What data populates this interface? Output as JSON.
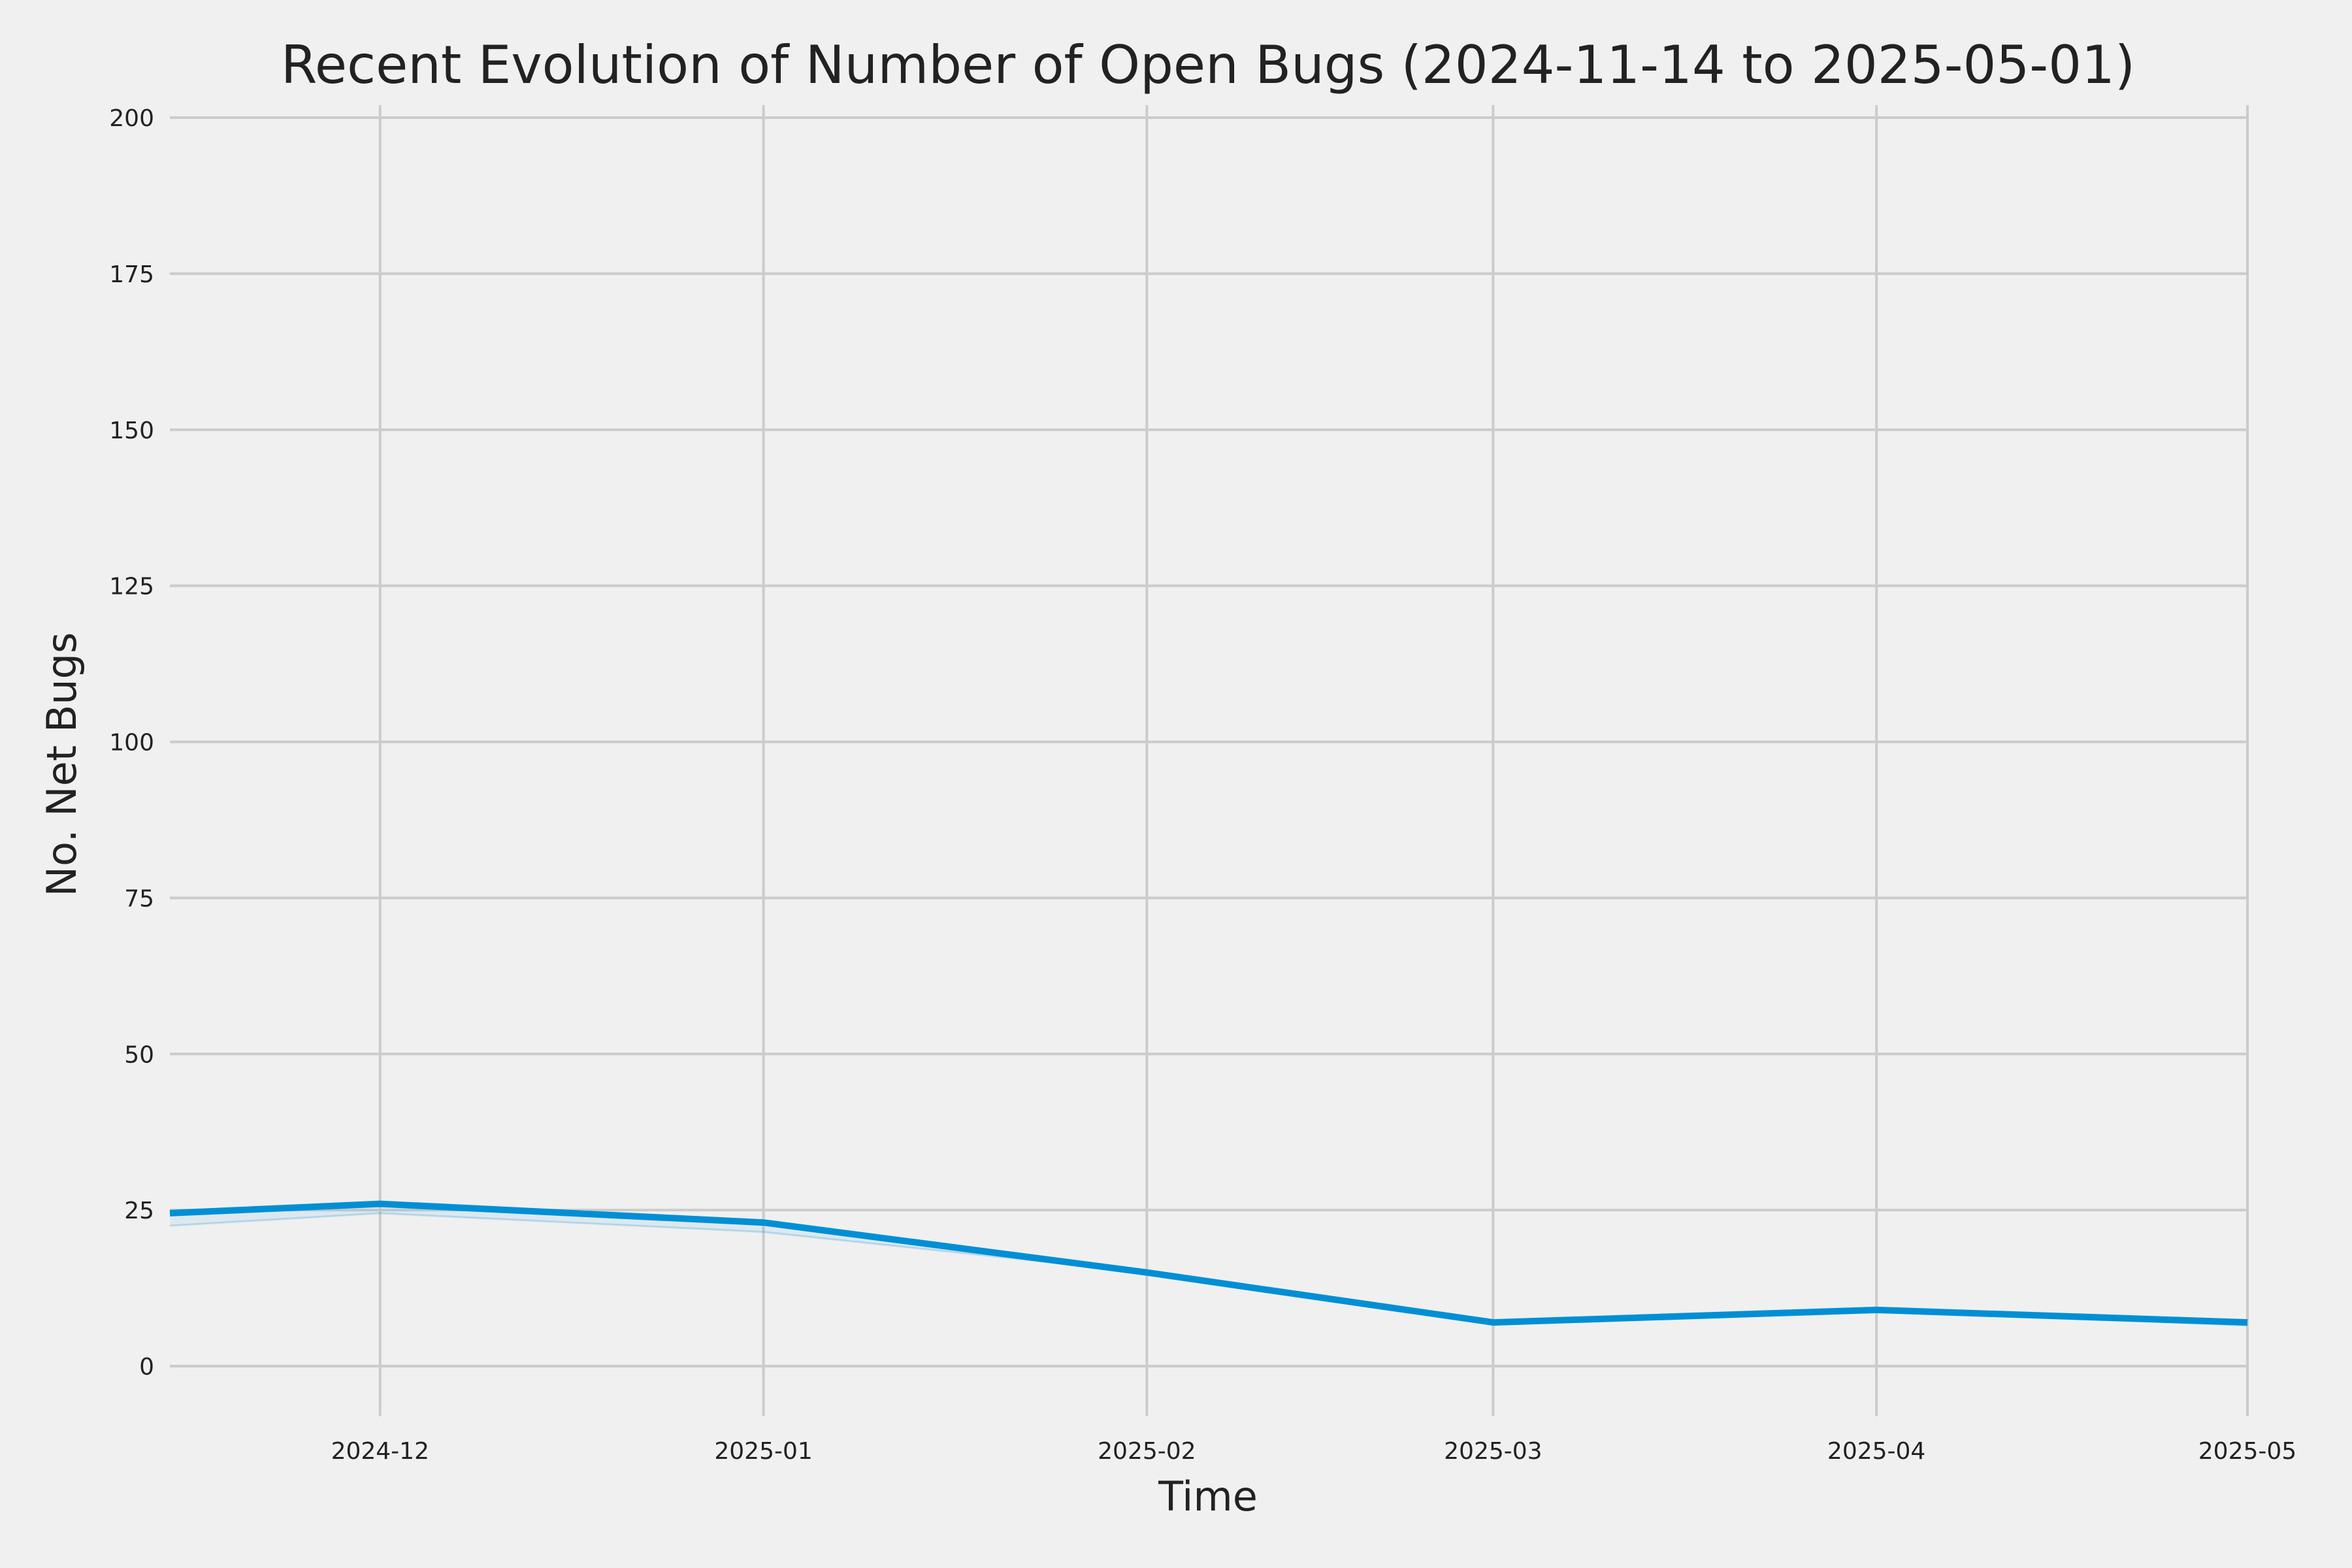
{
  "chart_data": {
    "type": "line",
    "title": "Recent Evolution of Number of Open Bugs (2024-11-14 to 2025-05-01)",
    "xlabel": "Time",
    "ylabel": "No. Net Bugs",
    "xlim": [
      "2024-11-14",
      "2025-05-01"
    ],
    "ylim": [
      -8,
      202
    ],
    "x_ticks": [
      "2024-12-01",
      "2025-01-01",
      "2025-02-01",
      "2025-03-01",
      "2025-04-01",
      "2025-05-01"
    ],
    "x_tick_labels": [
      "2024-12",
      "2025-01",
      "2025-02",
      "2025-03",
      "2025-04",
      "2025-05"
    ],
    "y_ticks": [
      0,
      25,
      50,
      75,
      100,
      125,
      150,
      175,
      200
    ],
    "y_tick_labels": [
      "0",
      "25",
      "50",
      "75",
      "100",
      "125",
      "150",
      "175",
      "200"
    ],
    "grid": true,
    "background": "#f0f0f0",
    "line_color": "#008fd5",
    "series": [
      {
        "x": [
          "2024-11-14",
          "2024-12-01",
          "2025-01-01",
          "2025-02-01",
          "2025-03-01",
          "2025-04-01",
          "2025-05-01"
        ],
        "values": [
          24.5,
          26,
          23,
          15,
          7,
          9,
          7
        ],
        "lower": [
          22.5,
          24.5,
          21.5,
          15,
          7,
          9,
          6.5
        ]
      }
    ]
  }
}
